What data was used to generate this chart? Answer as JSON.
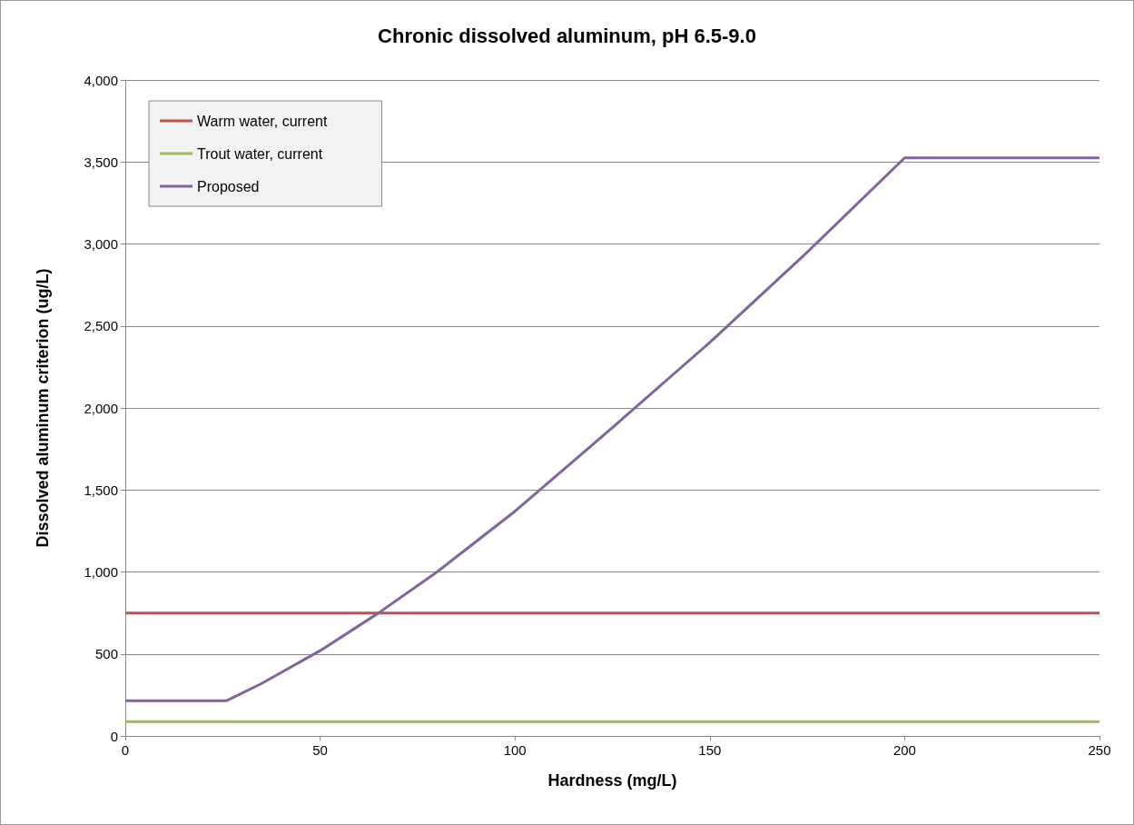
{
  "chart_data": {
    "type": "line",
    "title": "Chronic dissolved aluminum, pH 6.5-9.0",
    "xlabel": "Hardness (mg/L)",
    "ylabel": "Dissolved aluminum criterion (ug/L)",
    "xlim": [
      0,
      250
    ],
    "xticks": [
      0,
      50,
      100,
      150,
      200,
      250
    ],
    "ylim": [
      0,
      4000
    ],
    "yticks": [
      0,
      500,
      {
        "value": 1000,
        "label": "1,000"
      },
      {
        "value": 1500,
        "label": "1,500"
      },
      {
        "value": 2000,
        "label": "2,000"
      },
      {
        "value": 2500,
        "label": "2,500"
      },
      {
        "value": 3000,
        "label": "3,000"
      },
      {
        "value": 3500,
        "label": "3,500"
      },
      {
        "value": 4000,
        "label": "4,000"
      }
    ],
    "grid": "y",
    "legend": "top left",
    "marker": "none",
    "line_style": "solid",
    "series": [
      {
        "name": "Warm water, current",
        "color": "#c0504d",
        "x": [
          0,
          250
        ],
        "values": [
          750,
          750
        ]
      },
      {
        "name": "Trout water, current",
        "color": "#9bbb59",
        "x": [
          0,
          250
        ],
        "values": [
          87,
          87
        ]
      },
      {
        "name": "Proposed",
        "color": "#8064a2",
        "x": [
          0,
          26,
          35,
          50,
          65,
          80,
          100,
          125,
          150,
          175,
          200,
          250
        ],
        "values": [
          215,
          215,
          320,
          520,
          750,
          1000,
          1370,
          1880,
          2400,
          2950,
          3525,
          3525
        ]
      }
    ]
  }
}
